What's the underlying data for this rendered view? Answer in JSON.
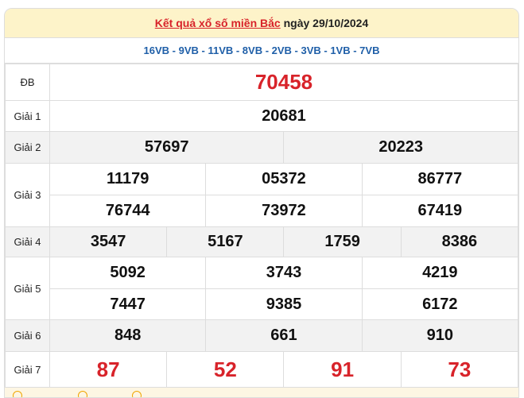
{
  "header": {
    "link": "Kết quả xổ số miền Bắc",
    "date_text": " ngày 29/10/2024"
  },
  "codes": "16VB - 9VB - 11VB - 8VB - 2VB - 3VB - 1VB - 7VB",
  "prizes": {
    "db": {
      "label": "ĐB",
      "values": [
        "70458"
      ]
    },
    "g1": {
      "label": "Giải 1",
      "values": [
        "20681"
      ]
    },
    "g2": {
      "label": "Giải 2",
      "values": [
        "57697",
        "20223"
      ]
    },
    "g3": {
      "label": "Giải 3",
      "values": [
        "11179",
        "05372",
        "86777",
        "76744",
        "73972",
        "67419"
      ]
    },
    "g4": {
      "label": "Giải 4",
      "values": [
        "3547",
        "5167",
        "1759",
        "8386"
      ]
    },
    "g5": {
      "label": "Giải 5",
      "values": [
        "5092",
        "3743",
        "4219",
        "7447",
        "9385",
        "6172"
      ]
    },
    "g6": {
      "label": "Giải 6",
      "values": [
        "848",
        "661",
        "910"
      ]
    },
    "g7": {
      "label": "Giải 7",
      "values": [
        "87",
        "52",
        "91",
        "73"
      ]
    }
  },
  "colors": {
    "accent": "#d8232a",
    "codes": "#1f5fa8",
    "header_bg": "#fdf3c9"
  }
}
